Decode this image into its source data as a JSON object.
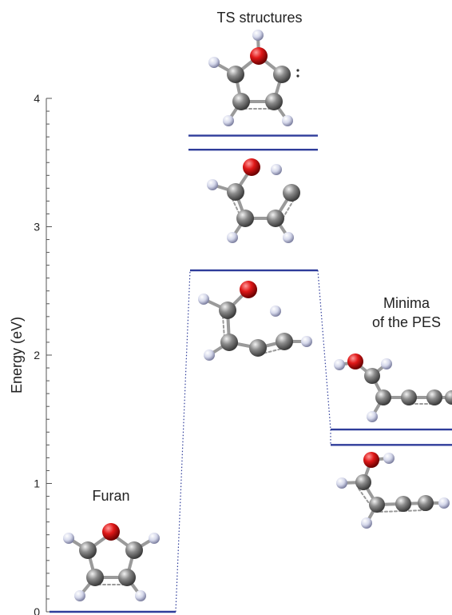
{
  "diagram": {
    "ylabel": "Energy (eV)",
    "ylim": [
      0,
      4
    ],
    "yticks": [
      "0",
      "1",
      "2",
      "3",
      "4"
    ],
    "labels": {
      "furan": "Furan",
      "ts": "TS structures",
      "minima_line1": "Minima",
      "minima_line2": "of the PES"
    },
    "levels": [
      {
        "name": "furan",
        "energy": 0.0
      },
      {
        "name": "ts-ring",
        "energy": 3.71
      },
      {
        "name": "ts-open",
        "energy": 3.6
      },
      {
        "name": "ts-chain",
        "energy": 2.66
      },
      {
        "name": "min-1",
        "energy": 1.42
      },
      {
        "name": "min-2",
        "energy": 1.3
      }
    ],
    "colors": {
      "level": "#2e3c9a",
      "connector": "#2e3c9a",
      "carbon": "#6c6c6c",
      "oxygen": "#d81b1b",
      "hydrogen": "#d9dcec"
    }
  }
}
